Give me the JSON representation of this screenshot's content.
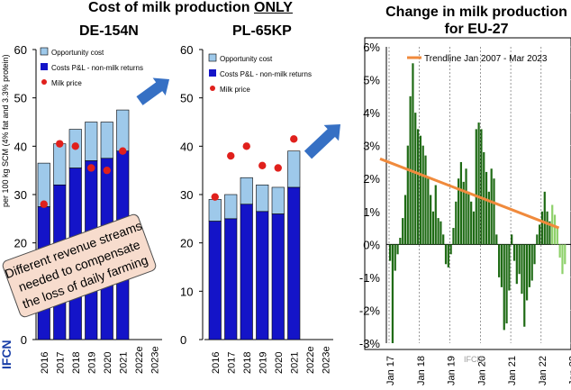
{
  "left_title_prefix": "Cost of milk production ",
  "left_title_emph": "ONLY",
  "right_title_line1": "Change in milk production",
  "right_title_line2": "for EU-27",
  "callout_text": [
    "Different revenue streams",
    "needed to compensate",
    "the loss of daily farming"
  ],
  "ylabel_partial": "per 100 kg SCM (4% fat and 3.3% protein)",
  "ifcn_label": "IFCN",
  "watermark": "IFCN",
  "colors": {
    "opportunity": "#9ec9ea",
    "costs": "#1414c8",
    "milk": "#e0201c",
    "positive": "#1f6b15",
    "positive_recent": "#8ed16a",
    "trendline": "#f08a3c",
    "arrow": "#3670c4",
    "callout_bg": "#f7dccd"
  },
  "chart_data": [
    {
      "type": "bar",
      "title": "DE-154N",
      "categories": [
        "2016",
        "2017",
        "2018",
        "2019",
        "2020",
        "2021",
        "2022e",
        "2023e"
      ],
      "ylim": [
        0,
        60
      ],
      "yticks": [
        0,
        10,
        20,
        30,
        40,
        50,
        60
      ],
      "legend": [
        "Opportunity cost",
        "Costs P&L - non-milk returns",
        "Milk price"
      ],
      "series": [
        {
          "name": "Costs P&L - non-milk returns",
          "values": [
            27.5,
            32,
            35.5,
            37,
            37.5,
            39,
            null,
            null
          ]
        },
        {
          "name": "Opportunity cost",
          "values": [
            9,
            8.5,
            8,
            8,
            7.5,
            8.5,
            null,
            null
          ]
        },
        {
          "name": "Milk price",
          "values": [
            28,
            40.5,
            40,
            35.5,
            35,
            39,
            null,
            null
          ]
        }
      ]
    },
    {
      "type": "bar",
      "title": "PL-65KP",
      "categories": [
        "2016",
        "2017",
        "2018",
        "2019",
        "2020",
        "2021",
        "2022e",
        "2023e"
      ],
      "ylim": [
        0,
        60
      ],
      "yticks": [
        0,
        10,
        20,
        30,
        40,
        50,
        60
      ],
      "legend": [
        "Opportunity cost",
        "Costs P&L - non-milk returns",
        "Milk price"
      ],
      "series": [
        {
          "name": "Costs P&L - non-milk returns",
          "values": [
            24.5,
            25,
            28,
            26.5,
            26,
            31.5,
            null,
            null
          ]
        },
        {
          "name": "Opportunity cost",
          "values": [
            4.5,
            5,
            5.5,
            5.5,
            5.5,
            7.5,
            null,
            null
          ]
        },
        {
          "name": "Milk price",
          "values": [
            29.5,
            38,
            40,
            36,
            35.5,
            41.5,
            null,
            null
          ]
        }
      ]
    },
    {
      "type": "bar",
      "title": "Change in milk production for EU-27",
      "x_labels": [
        "Jan 17",
        "Jan 18",
        "Jan 19",
        "Jan 20",
        "Jan 21",
        "Jan 22",
        "Jan 23"
      ],
      "ylim": [
        -3,
        6
      ],
      "yticks": [
        "-3%",
        "-2%",
        "-1%",
        "0%",
        "1%",
        "2%",
        "3%",
        "4%",
        "5%",
        "6%"
      ],
      "legend": [
        "Trendline Jan 2007 - Mar 2023"
      ],
      "trendline": {
        "start": 2.6,
        "end": 0.5
      },
      "series": [
        {
          "name": "monthly change",
          "values": [
            -0.5,
            -3,
            -0.8,
            -0.3,
            0.2,
            0.8,
            1.5,
            3.0,
            4.5,
            5.5,
            4.0,
            3.5,
            3.3,
            3.0,
            2.7,
            2.0,
            1.5,
            1.0,
            1.8,
            0.8,
            0.7,
            0.3,
            -0.6,
            -0.7,
            -0.3,
            0.5,
            1.3,
            2.0,
            2.5,
            1.9,
            2.3,
            1.6,
            1.3,
            1.0,
            3.5,
            3.7,
            3.5,
            2.8,
            2.2,
            1.6,
            2.3,
            2.0,
            0.3,
            -1.0,
            -1.3,
            -2.6,
            -2.4,
            -1.4,
            0.3,
            -0.5,
            -1.2,
            -0.9,
            -1.5,
            -2.5,
            -1.7,
            -1.3,
            -1.1,
            -0.6,
            0.3,
            0.6,
            1.0,
            1.6,
            1.0,
            0.7,
            1.2,
            0.9,
            0.5,
            -0.4,
            -0.9,
            -0.6
          ]
        }
      ]
    }
  ]
}
